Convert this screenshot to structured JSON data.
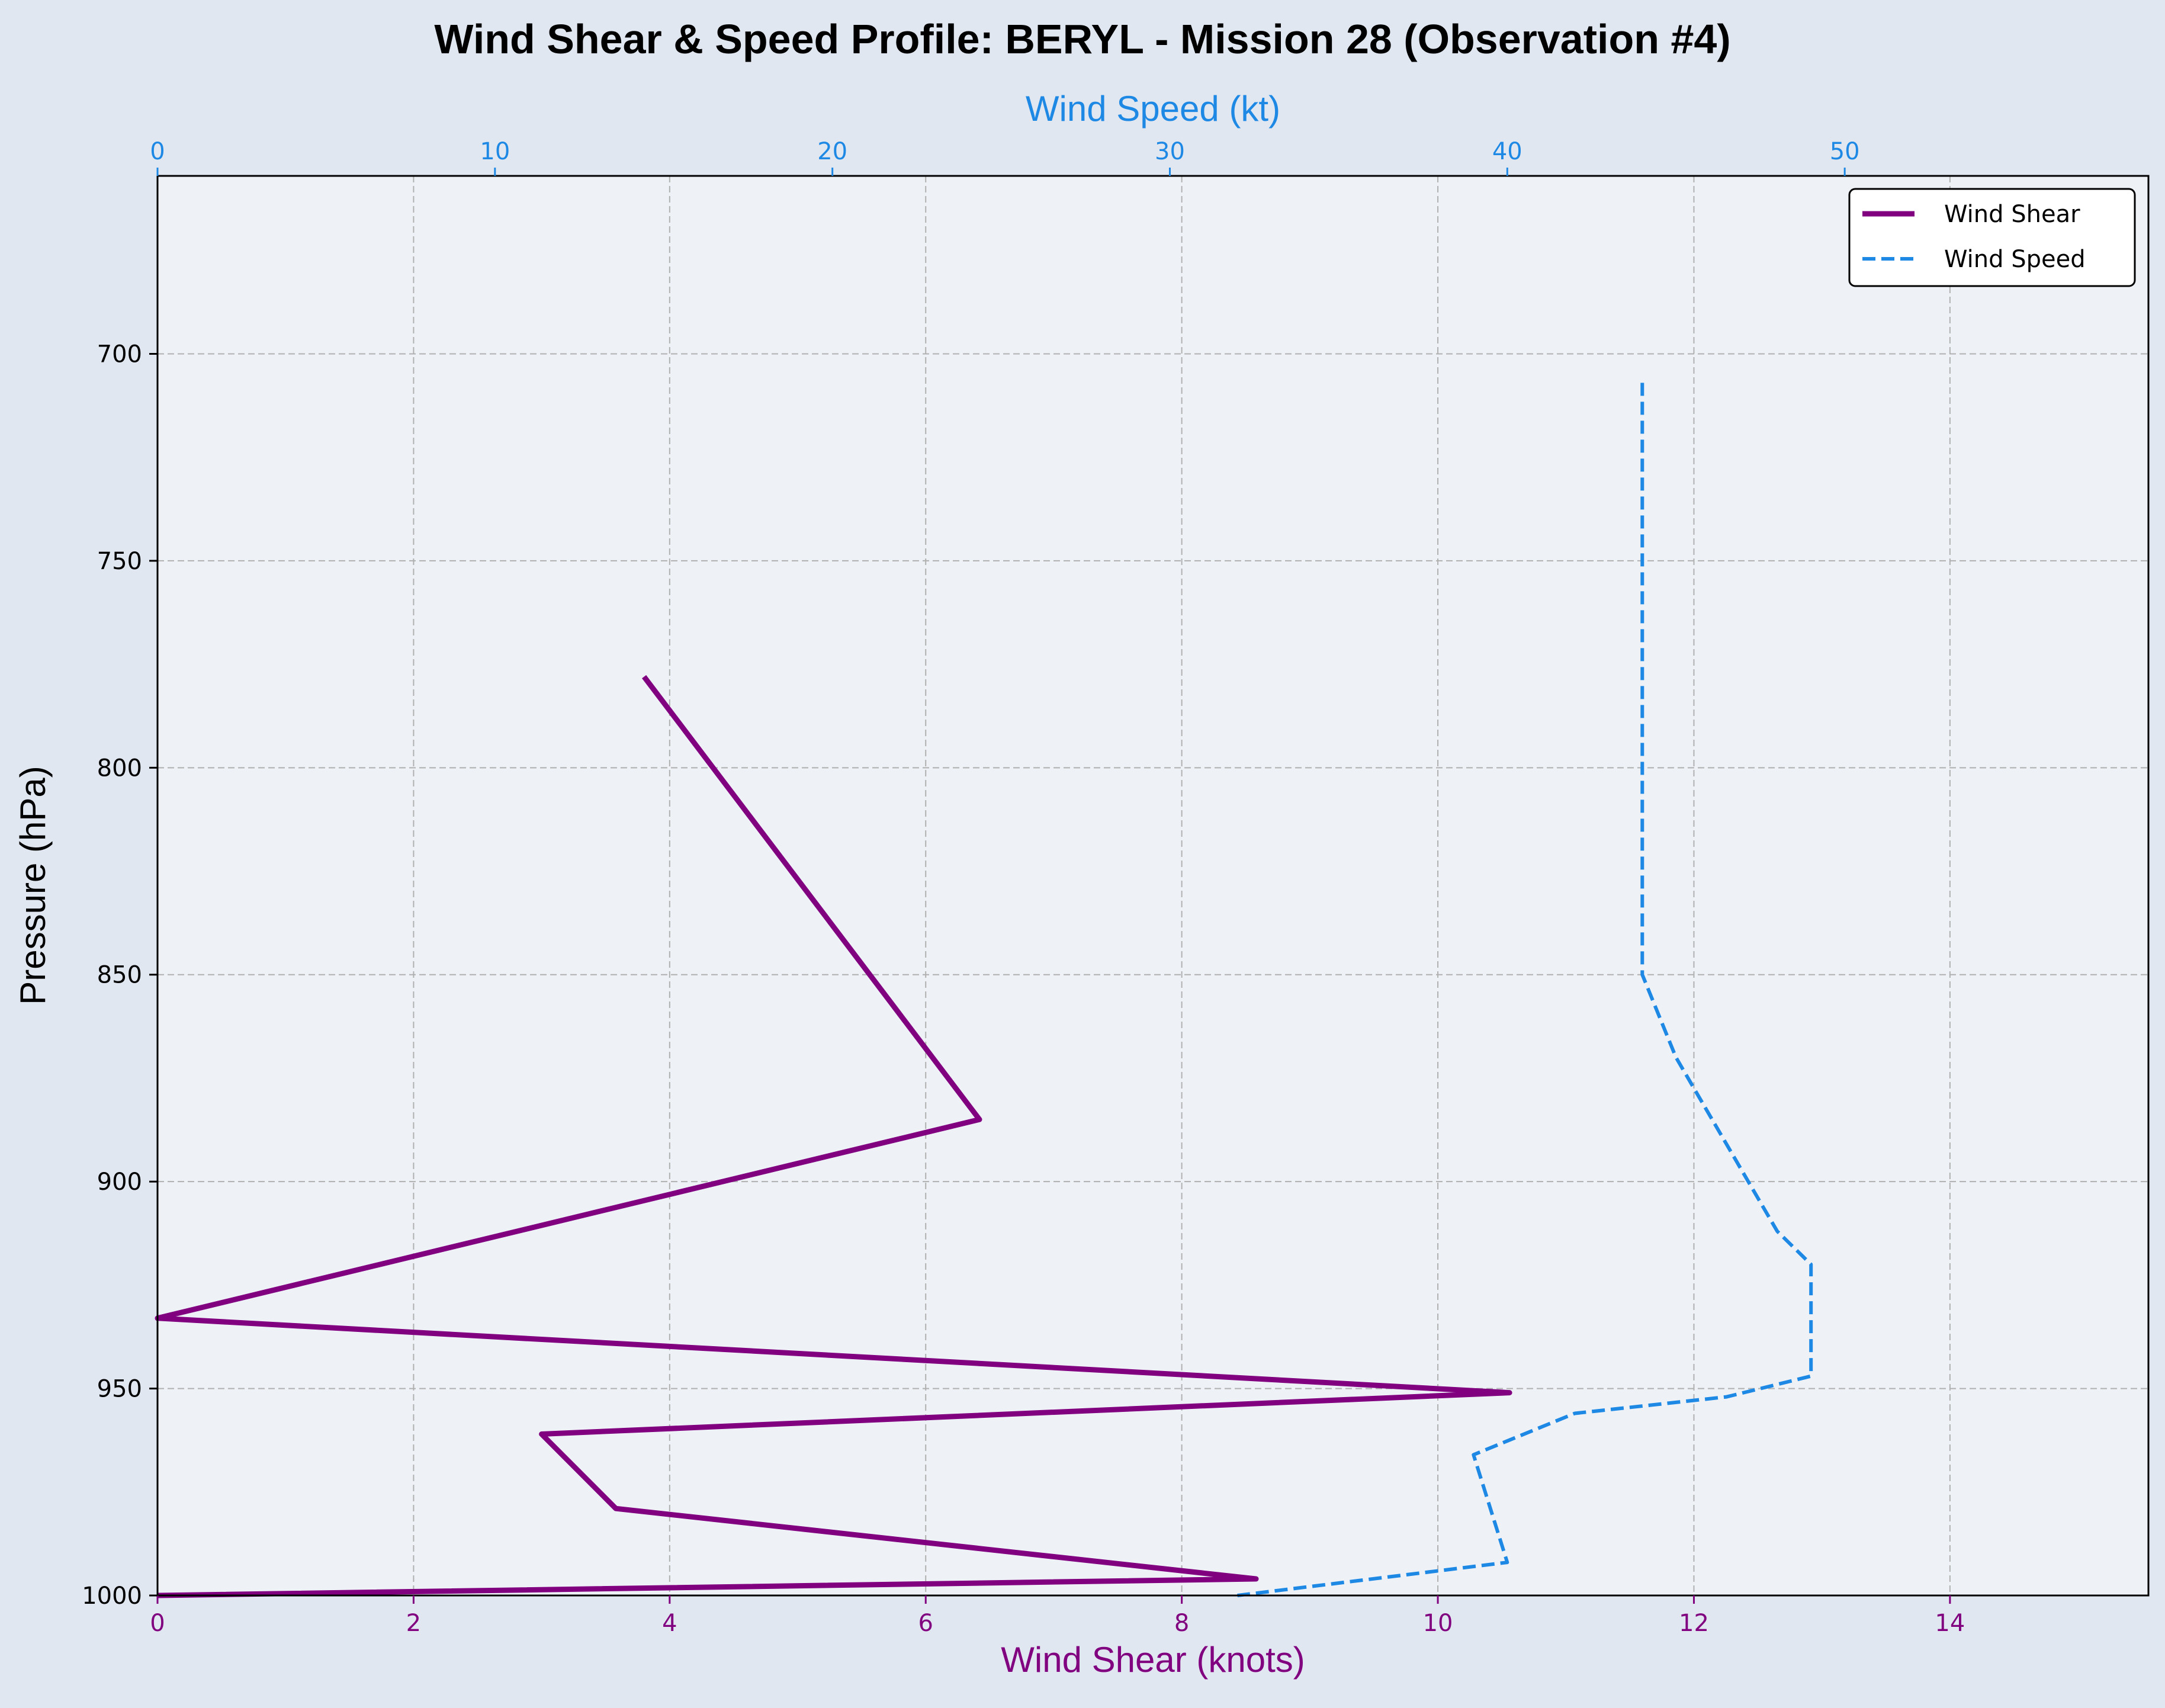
{
  "chart_data": {
    "type": "line",
    "title": "Wind Shear & Speed Profile: BERYL - Mission 28 (Observation #4)",
    "ylabel": "Pressure (hPa)",
    "xlabel_bottom": "Wind Shear (knots)",
    "xlabel_top": "Wind Speed (kt)",
    "ylim": [
      1000,
      657
    ],
    "y_ticks": [
      700,
      750,
      800,
      850,
      900,
      950,
      1000
    ],
    "x_bottom_lim": [
      0,
      15.55
    ],
    "x_bottom_ticks": [
      0,
      2,
      4,
      6,
      8,
      10,
      12,
      14
    ],
    "x_top_lim": [
      0,
      59
    ],
    "x_top_ticks": [
      0,
      10,
      20,
      30,
      40,
      50
    ],
    "grid": true,
    "legend_position": "top-right",
    "series": [
      {
        "name": "Wind Shear",
        "axis": "bottom",
        "color": "#800080",
        "style": "solid",
        "points": [
          {
            "x": 3.8,
            "y": 778
          },
          {
            "x": 6.42,
            "y": 885
          },
          {
            "x": 0.0,
            "y": 933
          },
          {
            "x": 10.56,
            "y": 951
          },
          {
            "x": 3.0,
            "y": 961
          },
          {
            "x": 3.58,
            "y": 979
          },
          {
            "x": 8.58,
            "y": 996
          },
          {
            "x": 0.0,
            "y": 1000
          }
        ]
      },
      {
        "name": "Wind Speed",
        "axis": "top",
        "color": "#1e88e5",
        "style": "dashed",
        "points": [
          {
            "x": 44.0,
            "y": 707
          },
          {
            "x": 44.0,
            "y": 850
          },
          {
            "x": 45.0,
            "y": 870
          },
          {
            "x": 48.0,
            "y": 912
          },
          {
            "x": 49.0,
            "y": 920
          },
          {
            "x": 49.0,
            "y": 947
          },
          {
            "x": 46.5,
            "y": 952
          },
          {
            "x": 42.0,
            "y": 956
          },
          {
            "x": 39.0,
            "y": 966
          },
          {
            "x": 40.0,
            "y": 992
          },
          {
            "x": 32.0,
            "y": 1000
          }
        ]
      }
    ]
  },
  "colors": {
    "figure_background": "#e1e7f0",
    "plot_background": "#eef2f7",
    "shear_axis": "#800080",
    "speed_axis": "#1e88e5"
  }
}
